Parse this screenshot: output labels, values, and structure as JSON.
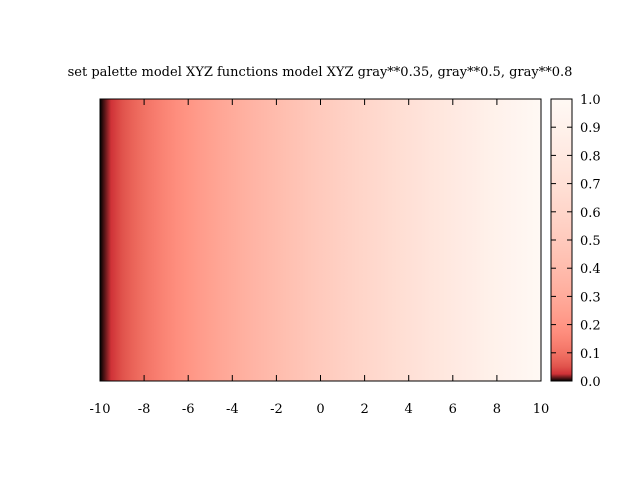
{
  "chart_data": {
    "type": "heatmap",
    "title": "set palette model XYZ functions model XYZ  gray**0.35, gray**0.5, gray**0.8",
    "xlabel": "",
    "ylabel": "",
    "x": {
      "range": [
        -10,
        10
      ],
      "ticks": [
        -10,
        -8,
        -6,
        -4,
        -2,
        0,
        2,
        4,
        6,
        8,
        10
      ],
      "tick_labels": [
        "-10",
        "-8",
        "-6",
        "-4",
        "-2",
        "0",
        "2",
        "4",
        "6",
        "8",
        "10"
      ]
    },
    "values_description": "color value varies linearly from 0 at x=-10 to 1 at x=10, constant along y",
    "z": {
      "range": [
        0,
        1
      ],
      "ticks": [
        0.0,
        0.1,
        0.2,
        0.3,
        0.4,
        0.5,
        0.6,
        0.7,
        0.8,
        0.9,
        1.0
      ],
      "tick_labels": [
        "0.0",
        "0.1",
        "0.2",
        "0.3",
        "0.4",
        "0.5",
        "0.6",
        "0.7",
        "0.8",
        "0.9",
        "1.0"
      ]
    },
    "palette": {
      "model": "XYZ",
      "functions": [
        "gray**0.35",
        "gray**0.5",
        "gray**0.8"
      ]
    },
    "colorbar": true,
    "grid": false
  }
}
